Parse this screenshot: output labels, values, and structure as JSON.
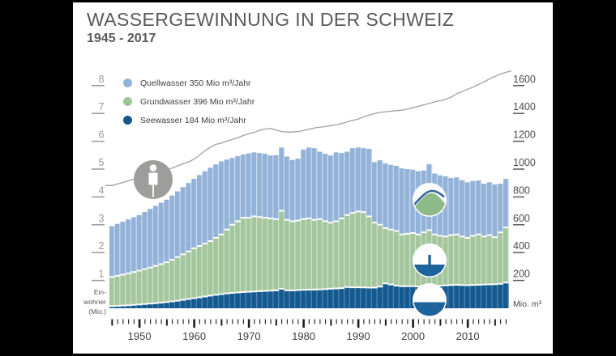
{
  "title": "WASSERGEWINNUNG IN DER SCHWEIZ",
  "subtitle": "1945 - 2017",
  "legend": {
    "items": [
      {
        "label": "Quellwasser 350 Mio m³/Jahr",
        "color": "#92b4da"
      },
      {
        "label": "Grundwasser 396 Mio m³/Jahr",
        "color": "#9cc395"
      },
      {
        "label": "Seewasser 184 Mio m³/Jahr",
        "color": "#11568c"
      }
    ]
  },
  "left_axis": {
    "ticks": [
      1,
      2,
      3,
      4,
      5,
      6,
      7,
      8
    ],
    "label_lines": [
      "Ein-",
      "wohner",
      "(Mio.)"
    ],
    "range": [
      0,
      8
    ],
    "color": "#98989b"
  },
  "right_axis": {
    "ticks": [
      200,
      400,
      600,
      800,
      1000,
      1200,
      1400,
      1600
    ],
    "label": "Mio. m³",
    "range": [
      0,
      1600
    ],
    "color": "#4a4a4d"
  },
  "x_axis": {
    "decade_labels": [
      "1950",
      "1960",
      "1970",
      "1980",
      "1990",
      "2000",
      "2010"
    ],
    "tick_color": "#1c1c1c",
    "label_color": "#3d3d3f"
  },
  "chart_data": {
    "type": "area",
    "subtype": "stacked-yearly-columns-with-population-line",
    "years_start": 1945,
    "years_end": 2017,
    "years": [
      1945,
      1946,
      1947,
      1948,
      1949,
      1950,
      1951,
      1952,
      1953,
      1954,
      1955,
      1956,
      1957,
      1958,
      1959,
      1960,
      1961,
      1962,
      1963,
      1964,
      1965,
      1966,
      1967,
      1968,
      1969,
      1970,
      1971,
      1972,
      1973,
      1974,
      1975,
      1976,
      1977,
      1978,
      1979,
      1980,
      1981,
      1982,
      1983,
      1984,
      1985,
      1986,
      1987,
      1988,
      1989,
      1990,
      1991,
      1992,
      1993,
      1994,
      1995,
      1996,
      1997,
      1998,
      1999,
      2000,
      2001,
      2002,
      2003,
      2004,
      2005,
      2006,
      2007,
      2008,
      2009,
      2010,
      2011,
      2012,
      2013,
      2014,
      2015,
      2016,
      2017
    ],
    "series": [
      {
        "name": "Seewasser",
        "unit": "Mio m3",
        "color": "#135a91",
        "stripe_color": "#4d7fa9",
        "values": [
          15,
          17,
          19,
          21,
          24,
          27,
          30,
          33,
          36,
          40,
          44,
          49,
          54,
          60,
          66,
          72,
          78,
          84,
          90,
          96,
          101,
          106,
          110,
          113,
          116,
          118,
          120,
          122,
          124,
          126,
          128,
          140,
          128,
          128,
          130,
          132,
          133,
          134,
          135,
          137,
          140,
          142,
          144,
          152,
          150,
          150,
          149,
          148,
          148,
          155,
          178,
          170,
          162,
          158,
          158,
          158,
          156,
          160,
          172,
          160,
          162,
          164,
          166,
          168,
          166,
          165,
          167,
          168,
          170,
          171,
          172,
          175,
          184
        ]
      },
      {
        "name": "Grundwasser",
        "unit": "Mio m3",
        "color": "#a3c69c",
        "stripe_color": "#cbdec6",
        "values": [
          210,
          216,
          222,
          229,
          236,
          243,
          251,
          259,
          268,
          277,
          286,
          299,
          313,
          327,
          342,
          358,
          369,
          380,
          392,
          410,
          429,
          459,
          490,
          512,
          534,
          532,
          540,
          533,
          526,
          519,
          512,
          560,
          507,
          497,
          500,
          508,
          512,
          501,
          505,
          488,
          475,
          483,
          501,
          518,
          535,
          545,
          541,
          512,
          467,
          445,
          397,
          395,
          393,
          372,
          377,
          382,
          374,
          385,
          388,
          370,
          358,
          351,
          359,
          362,
          349,
          340,
          353,
          362,
          345,
          354,
          338,
          370,
          396
        ]
      },
      {
        "name": "Quellwasser",
        "unit": "Mio m3",
        "color": "#92b2d8",
        "stripe_color": "#c6d6ea",
        "values": [
          365,
          373,
          381,
          388,
          394,
          400,
          411,
          422,
          432,
          441,
          450,
          462,
          473,
          483,
          492,
          500,
          510,
          520,
          528,
          527,
          525,
          503,
          480,
          468,
          455,
          463,
          460,
          460,
          460,
          453,
          460,
          455,
          455,
          440,
          445,
          500,
          510,
          515,
          485,
          485,
          483,
          495,
          470,
          455,
          465,
          460,
          460,
          485,
          435,
          463,
          465,
          465,
          468,
          475,
          465,
          455,
          455,
          445,
          475,
          438,
          435,
          433,
          410,
          410,
          405,
          400,
          395,
          388,
          380,
          380,
          380,
          350,
          350
        ]
      }
    ],
    "line_series": {
      "name": "Einwohner (Mio.)",
      "color": "#a0a0a0",
      "values": [
        4.41,
        4.47,
        4.52,
        4.58,
        4.64,
        4.69,
        4.75,
        4.82,
        4.89,
        4.93,
        4.98,
        5.04,
        5.12,
        5.2,
        5.26,
        5.36,
        5.51,
        5.67,
        5.79,
        5.89,
        5.94,
        6.01,
        6.07,
        6.13,
        6.21,
        6.27,
        6.32,
        6.4,
        6.44,
        6.46,
        6.4,
        6.35,
        6.33,
        6.33,
        6.35,
        6.39,
        6.43,
        6.48,
        6.51,
        6.53,
        6.56,
        6.6,
        6.64,
        6.7,
        6.75,
        6.8,
        6.88,
        6.94,
        7.0,
        7.04,
        7.06,
        7.08,
        7.1,
        7.12,
        7.16,
        7.21,
        7.26,
        7.31,
        7.36,
        7.42,
        7.46,
        7.51,
        7.59,
        7.71,
        7.79,
        7.87,
        7.95,
        8.04,
        8.14,
        8.24,
        8.33,
        8.42,
        8.48
      ]
    },
    "pictograms": {
      "person_circle_color": "#9d9d9c",
      "icon_water_color": "#1d639c",
      "icon_hill_color": "#8dba87",
      "icon_stream_color": "#30679a"
    },
    "grid": false,
    "legend_position": "top-left"
  }
}
